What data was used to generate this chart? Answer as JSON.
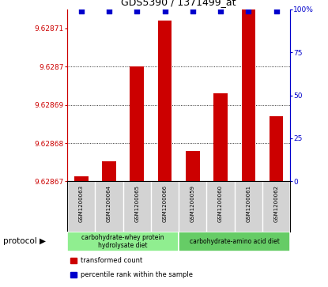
{
  "title": "GDS5390 / 1371499_at",
  "samples": [
    "GSM1200063",
    "GSM1200064",
    "GSM1200065",
    "GSM1200066",
    "GSM1200059",
    "GSM1200060",
    "GSM1200061",
    "GSM1200062"
  ],
  "bar_values": [
    9.62867133,
    9.62867533,
    9.6287,
    9.628712,
    9.628678,
    9.628693,
    9.628715,
    9.628687
  ],
  "percentile_values": [
    99,
    99,
    99,
    99,
    99,
    99,
    99,
    99
  ],
  "ylim_left": [
    9.62867,
    9.628715
  ],
  "ylim_right": [
    0,
    100
  ],
  "yticks_left": [
    9.62867,
    9.62868,
    9.62869,
    9.6287,
    9.62871
  ],
  "ytick_labels_left": [
    "9.62867",
    "9.62868",
    "9.62869",
    "9.6287",
    "9.62871"
  ],
  "yticks_right": [
    0,
    25,
    50,
    75,
    100
  ],
  "ytick_labels_right": [
    "0",
    "25",
    "50",
    "75",
    "100%"
  ],
  "bar_color": "#cc0000",
  "dot_color": "#0000cc",
  "left_axis_color": "#cc0000",
  "right_axis_color": "#0000cc",
  "protocol_groups": [
    {
      "label": "carbohydrate-whey protein\nhydrolysate diet",
      "start": 0,
      "end": 4,
      "color": "#90ee90"
    },
    {
      "label": "carbohydrate-amino acid diet",
      "start": 4,
      "end": 8,
      "color": "#66cc66"
    }
  ],
  "protocol_label": "protocol ▶",
  "legend_items": [
    {
      "color": "#cc0000",
      "label": "transformed count"
    },
    {
      "color": "#0000cc",
      "label": "percentile rank within the sample"
    }
  ],
  "background_color": "#ffffff",
  "plot_bg_color": "#ffffff",
  "tick_area_color": "#d3d3d3"
}
